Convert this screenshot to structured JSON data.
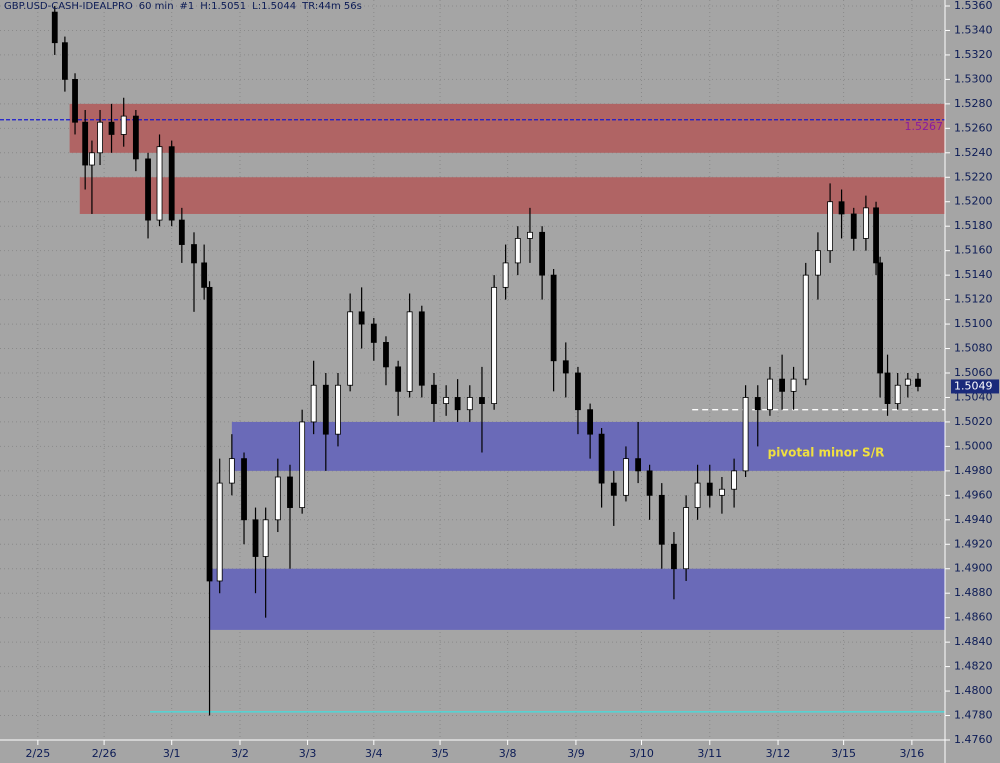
{
  "header": [
    "GBP.USD-CASH-IDEALPRO",
    "60 min",
    "#1",
    "H:1.5051",
    "L:1.5044",
    "TR:44m 56s"
  ],
  "chart_data": {
    "type": "candlestick",
    "grid": true,
    "up_color": "#ffffff",
    "down_color": "#000000",
    "xlim": [
      -0.56,
      13.42
    ],
    "ylim": [
      1.476,
      1.536
    ],
    "xticks": [
      {
        "value": 0,
        "label": "2/25"
      },
      {
        "value": 0.98,
        "label": "2/26"
      },
      {
        "value": 1.98,
        "label": "3/1"
      },
      {
        "value": 2.99,
        "label": "3/2"
      },
      {
        "value": 3.99,
        "label": "3/3"
      },
      {
        "value": 4.97,
        "label": "3/4"
      },
      {
        "value": 5.95,
        "label": "3/5"
      },
      {
        "value": 6.95,
        "label": "3/8"
      },
      {
        "value": 7.96,
        "label": "3/9"
      },
      {
        "value": 8.93,
        "label": "3/10"
      },
      {
        "value": 9.94,
        "label": "3/11"
      },
      {
        "value": 10.95,
        "label": "3/12"
      },
      {
        "value": 11.92,
        "label": "3/15"
      },
      {
        "value": 12.93,
        "label": "3/16"
      }
    ],
    "yticks": [
      {
        "value": 1.476,
        "label": "1.4760"
      },
      {
        "value": 1.478,
        "label": "1.4780"
      },
      {
        "value": 1.48,
        "label": "1.4800"
      },
      {
        "value": 1.482,
        "label": "1.4820"
      },
      {
        "value": 1.484,
        "label": "1.4840"
      },
      {
        "value": 1.486,
        "label": "1.4860"
      },
      {
        "value": 1.488,
        "label": "1.4880"
      },
      {
        "value": 1.49,
        "label": "1.4900"
      },
      {
        "value": 1.492,
        "label": "1.4920"
      },
      {
        "value": 1.494,
        "label": "1.4940"
      },
      {
        "value": 1.496,
        "label": "1.4960"
      },
      {
        "value": 1.498,
        "label": "1.4980"
      },
      {
        "value": 1.5,
        "label": "1.5000"
      },
      {
        "value": 1.502,
        "label": "1.5020"
      },
      {
        "value": 1.504,
        "label": "1.5040"
      },
      {
        "value": 1.506,
        "label": "1.5060"
      },
      {
        "value": 1.508,
        "label": "1.5080"
      },
      {
        "value": 1.51,
        "label": "1.5100"
      },
      {
        "value": 1.512,
        "label": "1.5120"
      },
      {
        "value": 1.514,
        "label": "1.5140"
      },
      {
        "value": 1.516,
        "label": "1.5160"
      },
      {
        "value": 1.518,
        "label": "1.5180"
      },
      {
        "value": 1.52,
        "label": "1.5200"
      },
      {
        "value": 1.522,
        "label": "1.5220"
      },
      {
        "value": 1.524,
        "label": "1.5240"
      },
      {
        "value": 1.526,
        "label": "1.5260"
      },
      {
        "value": 1.528,
        "label": "1.5280"
      },
      {
        "value": 1.53,
        "label": "1.5300"
      },
      {
        "value": 1.532,
        "label": "1.5320"
      },
      {
        "value": 1.534,
        "label": "1.5340"
      },
      {
        "value": 1.536,
        "label": "1.5360"
      }
    ],
    "x": [
      0.25,
      0.4,
      0.55,
      0.7,
      0.8,
      0.92,
      1.09,
      1.27,
      1.45,
      1.63,
      1.8,
      1.98,
      2.13,
      2.31,
      2.46,
      2.54,
      2.69,
      2.87,
      3.05,
      3.22,
      3.37,
      3.55,
      3.73,
      3.91,
      4.08,
      4.26,
      4.44,
      4.62,
      4.79,
      4.97,
      5.15,
      5.33,
      5.5,
      5.68,
      5.86,
      6.04,
      6.21,
      6.39,
      6.57,
      6.75,
      6.92,
      7.1,
      7.28,
      7.46,
      7.63,
      7.81,
      7.99,
      8.17,
      8.34,
      8.52,
      8.7,
      8.88,
      9.05,
      9.23,
      9.41,
      9.59,
      9.76,
      9.94,
      10.12,
      10.3,
      10.47,
      10.65,
      10.83,
      11.01,
      11.18,
      11.36,
      11.54,
      11.72,
      11.89,
      12.07,
      12.25,
      12.4,
      12.46,
      12.57,
      12.72,
      12.87,
      13.02
    ],
    "open": [
      1.5355,
      1.533,
      1.53,
      1.5265,
      1.523,
      1.524,
      1.5265,
      1.5255,
      1.527,
      1.5235,
      1.5185,
      1.5245,
      1.5185,
      1.5165,
      1.515,
      1.513,
      1.489,
      1.497,
      1.499,
      1.494,
      1.491,
      1.494,
      1.4975,
      1.495,
      1.502,
      1.505,
      1.501,
      1.505,
      1.511,
      1.51,
      1.5085,
      1.5065,
      1.5045,
      1.511,
      1.505,
      1.5035,
      1.504,
      1.503,
      1.504,
      1.5035,
      1.513,
      1.515,
      1.517,
      1.5175,
      1.514,
      1.507,
      1.506,
      1.503,
      1.501,
      1.497,
      1.496,
      1.499,
      1.498,
      1.496,
      1.492,
      1.49,
      1.495,
      1.497,
      1.496,
      1.4965,
      1.498,
      1.504,
      1.503,
      1.5055,
      1.5045,
      1.5055,
      1.514,
      1.516,
      1.52,
      1.519,
      1.517,
      1.5195,
      1.515,
      1.506,
      1.5035,
      1.505,
      1.5055
    ],
    "high": [
      1.536,
      1.5335,
      1.5305,
      1.5275,
      1.525,
      1.5275,
      1.528,
      1.5285,
      1.5275,
      1.524,
      1.5255,
      1.525,
      1.5195,
      1.5175,
      1.5165,
      1.5135,
      1.499,
      1.501,
      1.4995,
      1.495,
      1.495,
      1.499,
      1.4985,
      1.503,
      1.507,
      1.506,
      1.506,
      1.5125,
      1.513,
      1.5105,
      1.509,
      1.507,
      1.5125,
      1.5115,
      1.506,
      1.505,
      1.5055,
      1.505,
      1.5065,
      1.514,
      1.5165,
      1.518,
      1.5195,
      1.518,
      1.5145,
      1.5085,
      1.5065,
      1.5035,
      1.5015,
      1.498,
      1.5,
      1.502,
      1.4985,
      1.497,
      1.493,
      1.496,
      1.4985,
      1.4985,
      1.4975,
      1.499,
      1.505,
      1.505,
      1.5065,
      1.5075,
      1.5065,
      1.515,
      1.5175,
      1.5215,
      1.521,
      1.5195,
      1.5205,
      1.52,
      1.5155,
      1.5075,
      1.506,
      1.506,
      1.506
    ],
    "low": [
      1.532,
      1.529,
      1.5255,
      1.521,
      1.519,
      1.523,
      1.524,
      1.5245,
      1.5225,
      1.517,
      1.518,
      1.518,
      1.515,
      1.511,
      1.512,
      1.478,
      1.488,
      1.496,
      1.492,
      1.488,
      1.486,
      1.493,
      1.49,
      1.4945,
      1.501,
      1.498,
      1.5,
      1.5045,
      1.508,
      1.507,
      1.505,
      1.5025,
      1.504,
      1.504,
      1.502,
      1.5025,
      1.502,
      1.502,
      1.4995,
      1.503,
      1.512,
      1.514,
      1.515,
      1.512,
      1.5045,
      1.504,
      1.501,
      1.499,
      1.495,
      1.4935,
      1.4955,
      1.497,
      1.494,
      1.49,
      1.4875,
      1.489,
      1.494,
      1.495,
      1.4945,
      1.495,
      1.4975,
      1.5,
      1.5025,
      1.503,
      1.503,
      1.505,
      1.512,
      1.515,
      1.517,
      1.516,
      1.516,
      1.514,
      1.504,
      1.5025,
      1.503,
      1.504,
      1.5045
    ],
    "close": [
      1.533,
      1.53,
      1.5265,
      1.523,
      1.524,
      1.5265,
      1.5255,
      1.527,
      1.5235,
      1.5185,
      1.5245,
      1.5185,
      1.5165,
      1.515,
      1.513,
      1.489,
      1.497,
      1.499,
      1.494,
      1.491,
      1.494,
      1.4975,
      1.495,
      1.502,
      1.505,
      1.501,
      1.505,
      1.511,
      1.51,
      1.5085,
      1.5065,
      1.5045,
      1.511,
      1.505,
      1.5035,
      1.504,
      1.503,
      1.504,
      1.5035,
      1.513,
      1.515,
      1.517,
      1.5175,
      1.514,
      1.507,
      1.506,
      1.503,
      1.501,
      1.497,
      1.496,
      1.499,
      1.498,
      1.496,
      1.492,
      1.49,
      1.495,
      1.497,
      1.496,
      1.4965,
      1.498,
      1.504,
      1.503,
      1.5055,
      1.5045,
      1.5055,
      1.514,
      1.516,
      1.52,
      1.519,
      1.517,
      1.5195,
      1.515,
      1.506,
      1.5035,
      1.505,
      1.5055,
      1.5049
    ],
    "zones": [
      {
        "x0": 0.47,
        "y0": 1.524,
        "y1": 1.528,
        "color": "#b06464"
      },
      {
        "x0": 0.62,
        "y0": 1.519,
        "y1": 1.522,
        "color": "#b06464"
      },
      {
        "x0": 2.87,
        "y0": 1.498,
        "y1": 1.502,
        "color": "#6a6ab8"
      },
      {
        "x0": 2.54,
        "y0": 1.485,
        "y1": 1.49,
        "color": "#6a6ab8"
      }
    ],
    "lines": [
      {
        "value": 1.5267,
        "x0": -0.56,
        "color": "#1a1ad0",
        "dash": "4,2"
      },
      {
        "value": 1.503,
        "x0": 9.68,
        "color": "#ffffff",
        "dash": "6,4"
      },
      {
        "value": 1.4783,
        "x0": 1.66,
        "color": "#40e0e0",
        "dash": "none"
      }
    ],
    "annotation": "pivotal minor S/R",
    "last": 1.5049
  }
}
